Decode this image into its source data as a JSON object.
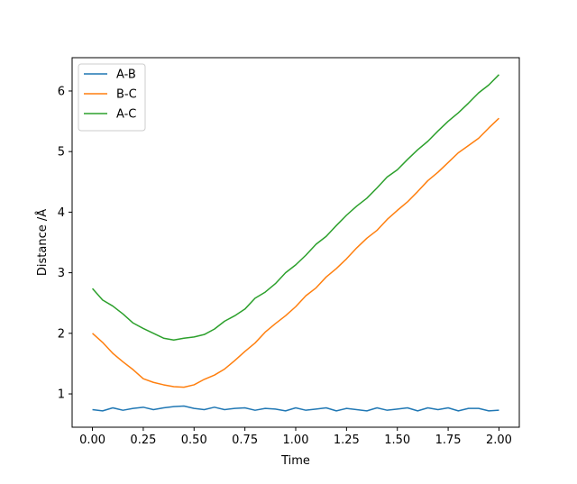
{
  "chart_data": {
    "type": "line",
    "title": "",
    "xlabel": "Time",
    "ylabel": "Distance /Å",
    "xlim": [
      -0.1,
      2.1
    ],
    "ylim": [
      0.45,
      6.55
    ],
    "xticks": [
      0.0,
      0.25,
      0.5,
      0.75,
      1.0,
      1.25,
      1.5,
      1.75,
      2.0
    ],
    "xtick_labels": [
      "0.00",
      "0.25",
      "0.50",
      "0.75",
      "1.00",
      "1.25",
      "1.50",
      "1.75",
      "2.00"
    ],
    "yticks": [
      1,
      2,
      3,
      4,
      5,
      6
    ],
    "ytick_labels": [
      "1",
      "2",
      "3",
      "4",
      "5",
      "6"
    ],
    "grid": false,
    "legend_position": "top-left",
    "series": [
      {
        "name": "A-B",
        "color": "#1f77b4",
        "x": [
          0.0,
          0.05,
          0.1,
          0.15,
          0.2,
          0.25,
          0.3,
          0.35,
          0.4,
          0.45,
          0.5,
          0.55,
          0.6,
          0.65,
          0.7,
          0.75,
          0.8,
          0.85,
          0.9,
          0.95,
          1.0,
          1.05,
          1.1,
          1.15,
          1.2,
          1.25,
          1.3,
          1.35,
          1.4,
          1.45,
          1.5,
          1.55,
          1.6,
          1.65,
          1.7,
          1.75,
          1.8,
          1.85,
          1.9,
          1.95,
          2.0
        ],
        "y": [
          0.74,
          0.72,
          0.77,
          0.73,
          0.76,
          0.78,
          0.74,
          0.77,
          0.79,
          0.8,
          0.76,
          0.74,
          0.78,
          0.74,
          0.76,
          0.77,
          0.73,
          0.76,
          0.75,
          0.72,
          0.77,
          0.73,
          0.75,
          0.77,
          0.72,
          0.76,
          0.74,
          0.72,
          0.77,
          0.73,
          0.75,
          0.77,
          0.72,
          0.77,
          0.74,
          0.77,
          0.72,
          0.76,
          0.76,
          0.72,
          0.73
        ]
      },
      {
        "name": "B-C",
        "color": "#ff7f0e",
        "x": [
          0.0,
          0.05,
          0.1,
          0.15,
          0.2,
          0.25,
          0.3,
          0.35,
          0.4,
          0.45,
          0.5,
          0.55,
          0.6,
          0.65,
          0.7,
          0.75,
          0.8,
          0.85,
          0.9,
          0.95,
          1.0,
          1.05,
          1.1,
          1.15,
          1.2,
          1.25,
          1.3,
          1.35,
          1.4,
          1.45,
          1.5,
          1.55,
          1.6,
          1.65,
          1.7,
          1.75,
          1.8,
          1.85,
          1.9,
          1.95,
          2.0
        ],
        "y": [
          2.0,
          1.85,
          1.67,
          1.53,
          1.4,
          1.25,
          1.19,
          1.15,
          1.12,
          1.11,
          1.15,
          1.24,
          1.31,
          1.41,
          1.55,
          1.7,
          1.84,
          2.02,
          2.16,
          2.29,
          2.44,
          2.62,
          2.75,
          2.93,
          3.07,
          3.23,
          3.41,
          3.57,
          3.7,
          3.88,
          4.03,
          4.17,
          4.34,
          4.52,
          4.66,
          4.82,
          4.98,
          5.1,
          5.22,
          5.39,
          5.55
        ]
      },
      {
        "name": "A-C",
        "color": "#2ca02c",
        "x": [
          0.0,
          0.05,
          0.1,
          0.15,
          0.2,
          0.25,
          0.3,
          0.35,
          0.4,
          0.45,
          0.5,
          0.55,
          0.6,
          0.65,
          0.7,
          0.75,
          0.8,
          0.85,
          0.9,
          0.95,
          1.0,
          1.05,
          1.1,
          1.15,
          1.2,
          1.25,
          1.3,
          1.35,
          1.4,
          1.45,
          1.5,
          1.55,
          1.6,
          1.65,
          1.7,
          1.75,
          1.8,
          1.85,
          1.9,
          1.95,
          2.0
        ],
        "y": [
          2.74,
          2.55,
          2.45,
          2.32,
          2.17,
          2.08,
          2.0,
          1.92,
          1.89,
          1.92,
          1.94,
          1.98,
          2.07,
          2.2,
          2.29,
          2.4,
          2.58,
          2.68,
          2.82,
          3.0,
          3.13,
          3.29,
          3.47,
          3.6,
          3.78,
          3.95,
          4.1,
          4.23,
          4.4,
          4.58,
          4.7,
          4.87,
          5.03,
          5.17,
          5.34,
          5.5,
          5.64,
          5.8,
          5.97,
          6.1,
          6.27
        ]
      }
    ]
  }
}
